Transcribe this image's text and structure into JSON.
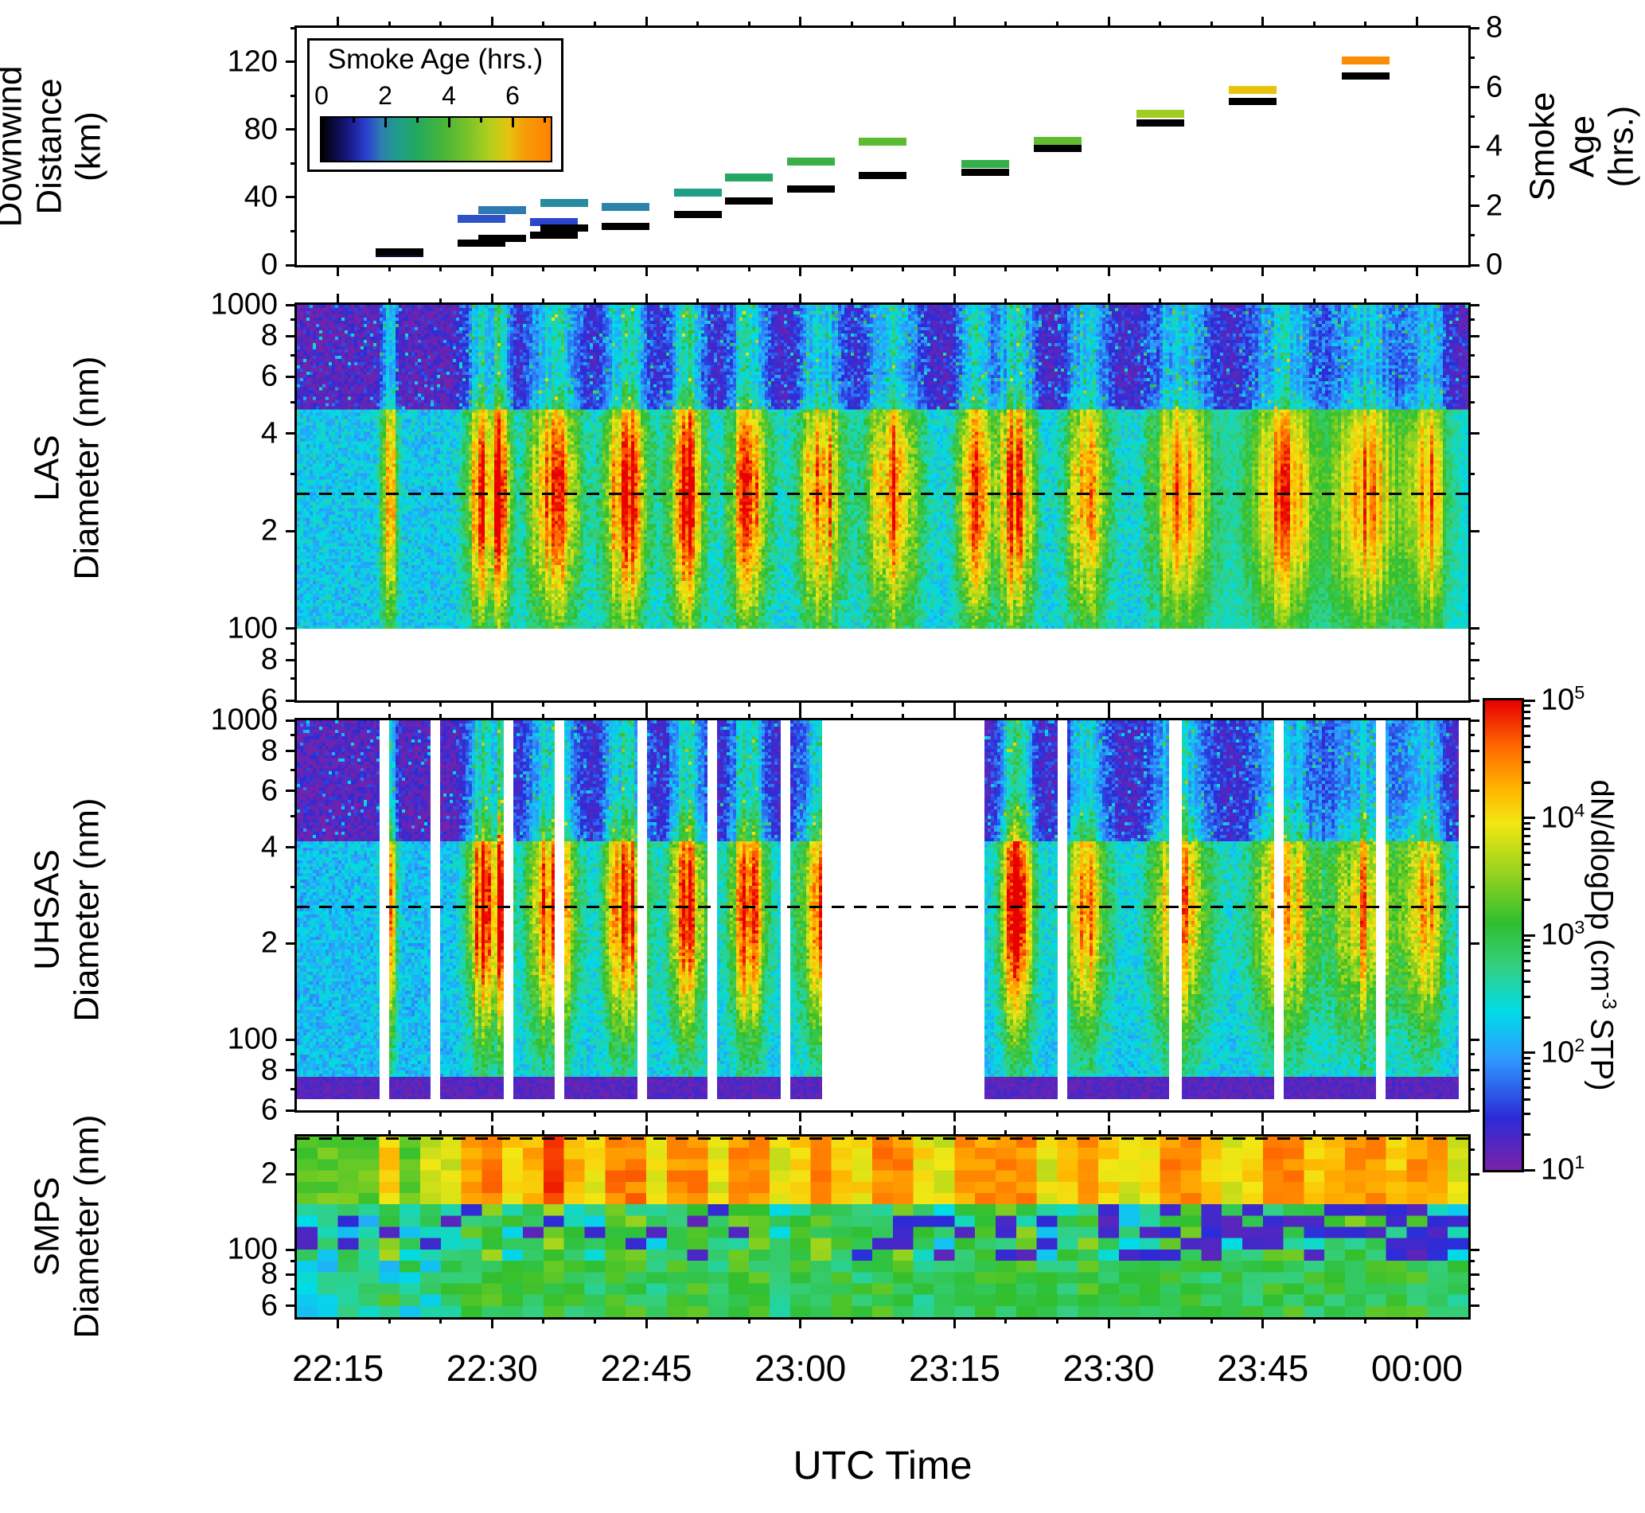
{
  "axes": {
    "x_label": "UTC Time",
    "x_range_utc": [
      "22:11",
      "00:05"
    ],
    "x_minor_tick_min": 5,
    "x_major_ticks": [
      {
        "utc": "22:15"
      },
      {
        "utc": "22:30"
      },
      {
        "utc": "22:45"
      },
      {
        "utc": "23:00"
      },
      {
        "utc": "23:15"
      },
      {
        "utc": "23:30"
      },
      {
        "utc": "23:45"
      },
      {
        "utc": "00:00"
      }
    ]
  },
  "colorbar": {
    "label_pre": "dN/dlogDp (cm",
    "label_sup": "-3",
    "label_post": " STP)",
    "tick_exponents": [
      5,
      4,
      3,
      2,
      1
    ],
    "log10_range": [
      1,
      5
    ],
    "stops": [
      [
        1.0,
        "#7a22a8"
      ],
      [
        1.45,
        "#2b2bd8"
      ],
      [
        1.95,
        "#2e9bff"
      ],
      [
        2.35,
        "#00dce6"
      ],
      [
        2.75,
        "#35cf7d"
      ],
      [
        3.1,
        "#2fbf2f"
      ],
      [
        3.5,
        "#8fd11f"
      ],
      [
        3.95,
        "#f2e713"
      ],
      [
        4.25,
        "#ffb400"
      ],
      [
        4.6,
        "#ff6a00"
      ],
      [
        5.0,
        "#e80000"
      ]
    ]
  },
  "age_legend": {
    "title": "Smoke Age (hrs.)",
    "tick_labels": [
      "0",
      "2",
      "4",
      "6"
    ],
    "tick_values": [
      0,
      2,
      4,
      6
    ],
    "range": [
      0,
      7.2
    ],
    "stops": [
      [
        0,
        "#000000"
      ],
      [
        0.8,
        "#15157e"
      ],
      [
        1.4,
        "#2b3fd0"
      ],
      [
        1.9,
        "#2e7fae"
      ],
      [
        2.4,
        "#1f9e8c"
      ],
      [
        3.0,
        "#23a85e"
      ],
      [
        3.8,
        "#46b637"
      ],
      [
        4.6,
        "#79c32a"
      ],
      [
        5.3,
        "#b4cf1d"
      ],
      [
        5.9,
        "#e8c20e"
      ],
      [
        6.4,
        "#f79a05"
      ],
      [
        7.2,
        "#ff8400"
      ]
    ]
  },
  "chart_data": [
    {
      "type": "scatter",
      "name": "flight-track",
      "ylabel_left": "Downwind\nDistance\n(km)",
      "ylabel_right": "Smoke Age\n(hrs.)",
      "ylim_left": [
        0,
        140
      ],
      "yticks_left": [
        0,
        40,
        80,
        120
      ],
      "yticks_left_minor": [
        20,
        60,
        100,
        140
      ],
      "ylim_right": [
        0,
        8
      ],
      "yticks_right": [
        0,
        2,
        4,
        6,
        8
      ],
      "yticks_right_minor": [
        1,
        3,
        5,
        7
      ],
      "points": [
        {
          "utc": "22:21",
          "distance_km": 8,
          "age_hr": 0.4
        },
        {
          "utc": "22:29",
          "distance_km": 13,
          "age_hr": 1.55
        },
        {
          "utc": "22:31",
          "distance_km": 16,
          "age_hr": 1.85
        },
        {
          "utc": "22:36",
          "distance_km": 18,
          "age_hr": 1.45
        },
        {
          "utc": "22:37",
          "distance_km": 22,
          "age_hr": 2.1
        },
        {
          "utc": "22:43",
          "distance_km": 23,
          "age_hr": 1.95
        },
        {
          "utc": "22:50",
          "distance_km": 30,
          "age_hr": 2.45
        },
        {
          "utc": "22:55",
          "distance_km": 38,
          "age_hr": 2.95
        },
        {
          "utc": "23:01",
          "distance_km": 45,
          "age_hr": 3.5
        },
        {
          "utc": "23:08",
          "distance_km": 53,
          "age_hr": 4.15
        },
        {
          "utc": "23:18",
          "distance_km": 55,
          "age_hr": 3.4
        },
        {
          "utc": "23:25",
          "distance_km": 69,
          "age_hr": 4.2
        },
        {
          "utc": "23:35",
          "distance_km": 84,
          "age_hr": 5.1
        },
        {
          "utc": "23:44",
          "distance_km": 97,
          "age_hr": 5.9
        },
        {
          "utc": "23:55",
          "distance_km": 112,
          "age_hr": 6.9
        }
      ]
    },
    {
      "type": "heatmap",
      "name": "las-spectrogram",
      "ylabel": "LAS\nDiameter (nm)",
      "yscale": "log",
      "axis_range_nm": [
        60,
        1000
      ],
      "data_range_nm": [
        100,
        1000
      ],
      "ytick_labels": [
        [
          1000,
          "1000"
        ],
        [
          800,
          "8"
        ],
        [
          600,
          "6"
        ],
        [
          400,
          "4"
        ],
        [
          200,
          "2"
        ],
        [
          100,
          "100"
        ],
        [
          80,
          "8"
        ],
        [
          60,
          "6"
        ]
      ],
      "dashed_line_nm": 260,
      "background": {
        "accumulation_mode_log10": 2.2,
        "coarse_mode_log10": 1.1,
        "mode_split_nm": 480
      },
      "plumes": [
        {
          "utc": "22:20",
          "sigma_min": 0.5,
          "peak_log10": 4.6
        },
        {
          "utc": "22:29",
          "sigma_min": 1.0,
          "peak_log10": 5.0
        },
        {
          "utc": "22:31",
          "sigma_min": 0.6,
          "peak_log10": 4.7
        },
        {
          "utc": "22:36",
          "sigma_min": 1.6,
          "peak_log10": 5.0
        },
        {
          "utc": "22:43",
          "sigma_min": 1.4,
          "peak_log10": 5.0
        },
        {
          "utc": "22:49",
          "sigma_min": 1.2,
          "peak_log10": 5.0
        },
        {
          "utc": "22:55",
          "sigma_min": 1.3,
          "peak_log10": 4.9
        },
        {
          "utc": "23:02",
          "sigma_min": 1.5,
          "peak_log10": 4.7
        },
        {
          "utc": "23:09",
          "sigma_min": 1.8,
          "peak_log10": 4.5
        },
        {
          "utc": "23:17",
          "sigma_min": 1.2,
          "peak_log10": 4.5
        },
        {
          "utc": "23:21",
          "sigma_min": 1.2,
          "peak_log10": 4.9
        },
        {
          "utc": "23:28",
          "sigma_min": 1.5,
          "peak_log10": 4.3
        },
        {
          "utc": "23:37",
          "sigma_min": 2.0,
          "peak_log10": 4.4
        },
        {
          "utc": "23:47",
          "sigma_min": 2.2,
          "peak_log10": 4.4
        },
        {
          "utc": "23:55",
          "sigma_min": 2.3,
          "peak_log10": 4.3
        },
        {
          "utc": "00:01",
          "sigma_min": 1.3,
          "peak_log10": 4.3
        }
      ]
    },
    {
      "type": "heatmap",
      "name": "uhsas-spectrogram",
      "ylabel": "UHSAS\nDiameter (nm)",
      "yscale": "log",
      "axis_range_nm": [
        60,
        1000
      ],
      "data_range_nm": [
        65,
        1000
      ],
      "ytick_labels": [
        [
          1000,
          "1000"
        ],
        [
          800,
          "8"
        ],
        [
          600,
          "6"
        ],
        [
          400,
          "4"
        ],
        [
          200,
          "2"
        ],
        [
          100,
          "100"
        ],
        [
          80,
          "8"
        ],
        [
          60,
          "6"
        ]
      ],
      "dashed_line_nm": 260,
      "data_intervals_utc": [
        [
          "22:11",
          "22:19"
        ],
        [
          "22:20",
          "22:24"
        ],
        [
          "22:25",
          "22:31"
        ],
        [
          "22:32",
          "22:36"
        ],
        [
          "22:37",
          "22:44"
        ],
        [
          "22:45",
          "22:51"
        ],
        [
          "22:52",
          "22:58"
        ],
        [
          "22:59",
          "23:02"
        ],
        [
          "23:18",
          "23:25"
        ],
        [
          "23:26",
          "23:36"
        ],
        [
          "23:37",
          "23:46"
        ],
        [
          "23:47",
          "23:56"
        ],
        [
          "23:57",
          "00:04"
        ]
      ],
      "plumes": [
        {
          "utc": "22:20",
          "sigma_min": 0.5,
          "peak_log10": 4.6
        },
        {
          "utc": "22:29",
          "sigma_min": 1.0,
          "peak_log10": 4.9
        },
        {
          "utc": "22:31",
          "sigma_min": 0.6,
          "peak_log10": 4.8
        },
        {
          "utc": "22:36",
          "sigma_min": 1.6,
          "peak_log10": 5.0
        },
        {
          "utc": "22:43",
          "sigma_min": 1.4,
          "peak_log10": 4.9
        },
        {
          "utc": "22:49",
          "sigma_min": 1.2,
          "peak_log10": 4.9
        },
        {
          "utc": "22:55",
          "sigma_min": 1.3,
          "peak_log10": 4.8
        },
        {
          "utc": "23:02",
          "sigma_min": 1.5,
          "peak_log10": 4.6
        },
        {
          "utc": "23:21",
          "sigma_min": 1.2,
          "peak_log10": 5.0
        },
        {
          "utc": "23:28",
          "sigma_min": 1.5,
          "peak_log10": 4.4
        },
        {
          "utc": "23:37",
          "sigma_min": 2.0,
          "peak_log10": 4.5
        },
        {
          "utc": "23:47",
          "sigma_min": 2.2,
          "peak_log10": 4.4
        },
        {
          "utc": "23:55",
          "sigma_min": 2.3,
          "peak_log10": 4.3
        },
        {
          "utc": "00:01",
          "sigma_min": 1.3,
          "peak_log10": 4.3
        }
      ]
    },
    {
      "type": "heatmap",
      "name": "smps-spectrogram",
      "ylabel": "SMPS\nDiameter (nm)",
      "yscale": "log",
      "axis_range_nm": [
        54,
        282
      ],
      "data_range_nm": [
        54,
        282
      ],
      "ytick_labels": [
        [
          200,
          "2"
        ],
        [
          100,
          "100"
        ],
        [
          80,
          "8"
        ],
        [
          60,
          "6"
        ]
      ],
      "dashed_line_nm": 270,
      "bands": [
        {
          "range_nm": [
            150,
            282
          ],
          "typical_log10": 4.2,
          "note": "yellow-orange, red in plumes"
        },
        {
          "range_nm": [
            95,
            150
          ],
          "typical_log10": 2.5,
          "patch_log10": 1.2,
          "note": "green with purple patches"
        },
        {
          "range_nm": [
            54,
            95
          ],
          "typical_log10": 2.9,
          "note": "green, cyan early"
        }
      ]
    }
  ]
}
